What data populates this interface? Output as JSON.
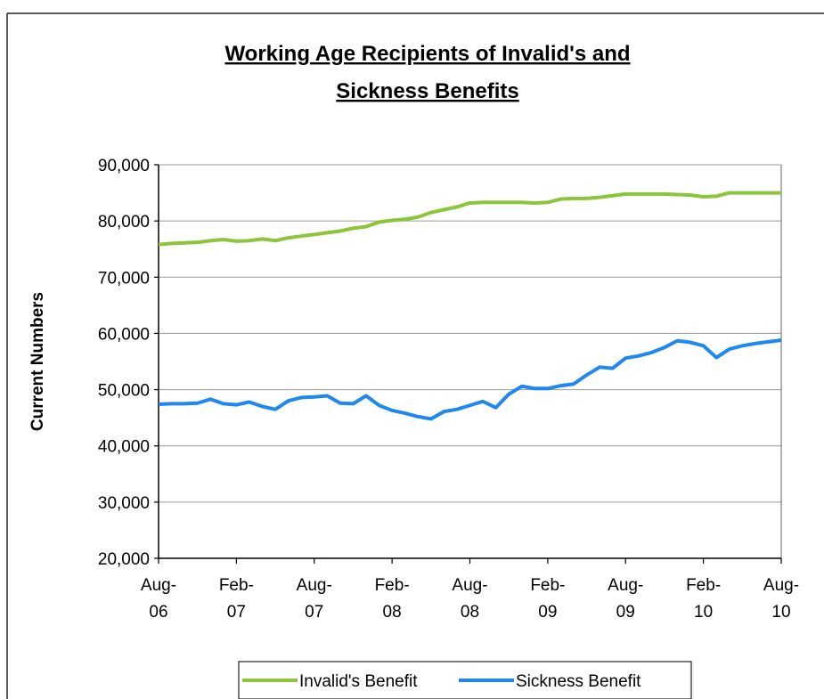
{
  "chart_data": {
    "type": "line",
    "title": [
      "Working Age Recipients of Invalid's and",
      "Sickness Benefits"
    ],
    "y_label": "Current Numbers",
    "categories": [
      "Aug-06",
      null,
      null,
      null,
      null,
      null,
      "Feb-07",
      null,
      null,
      null,
      null,
      null,
      "Aug-07",
      null,
      null,
      null,
      null,
      null,
      "Feb-08",
      null,
      null,
      null,
      null,
      null,
      "Aug-08",
      null,
      null,
      null,
      null,
      null,
      "Feb-09",
      null,
      null,
      null,
      null,
      null,
      "Aug-09",
      null,
      null,
      null,
      null,
      null,
      "Feb-10",
      null,
      null,
      null,
      null,
      null,
      "Aug-10"
    ],
    "series": [
      {
        "name": "Invalid's Benefit",
        "color": "#8cc43c",
        "values": [
          75800,
          76000,
          76100,
          76200,
          76500,
          76700,
          76400,
          76500,
          76800,
          76500,
          77000,
          77300,
          77600,
          77900,
          78200,
          78700,
          79000,
          79800,
          80100,
          80300,
          80700,
          81500,
          82000,
          82500,
          83200,
          83300,
          83300,
          83300,
          83300,
          83200,
          83300,
          83900,
          84000,
          84000,
          84200,
          84500,
          84800,
          84800,
          84800,
          84800,
          84700,
          84600,
          84300,
          84400,
          85000,
          85000,
          85000,
          85000,
          85000
        ]
      },
      {
        "name": "Sickness Benefit",
        "color": "#1e88f0",
        "values": [
          47400,
          47500,
          47500,
          47600,
          48300,
          47500,
          47300,
          47800,
          47000,
          46500,
          48000,
          48600,
          48700,
          48900,
          47600,
          47500,
          48900,
          47200,
          46300,
          45800,
          45200,
          44800,
          46100,
          46500,
          47200,
          47900,
          46800,
          49200,
          50600,
          50200,
          50200,
          50700,
          51000,
          52600,
          54000,
          53800,
          55600,
          56000,
          56600,
          57500,
          58700,
          58400,
          57800,
          55700,
          57200,
          57800,
          58200,
          58500,
          58800
        ]
      }
    ],
    "ylim": [
      20000,
      90000
    ],
    "yticks": [
      {
        "value": 20000,
        "label": "20,000"
      },
      {
        "value": 30000,
        "label": "30,000"
      },
      {
        "value": 40000,
        "label": "40,000"
      },
      {
        "value": 50000,
        "label": "50,000"
      },
      {
        "value": 60000,
        "label": "60,000"
      },
      {
        "value": 70000,
        "label": "70,000"
      },
      {
        "value": 80000,
        "label": "80,000"
      },
      {
        "value": 90000,
        "label": "90,000"
      }
    ],
    "grid": true,
    "legend": "bottom"
  }
}
